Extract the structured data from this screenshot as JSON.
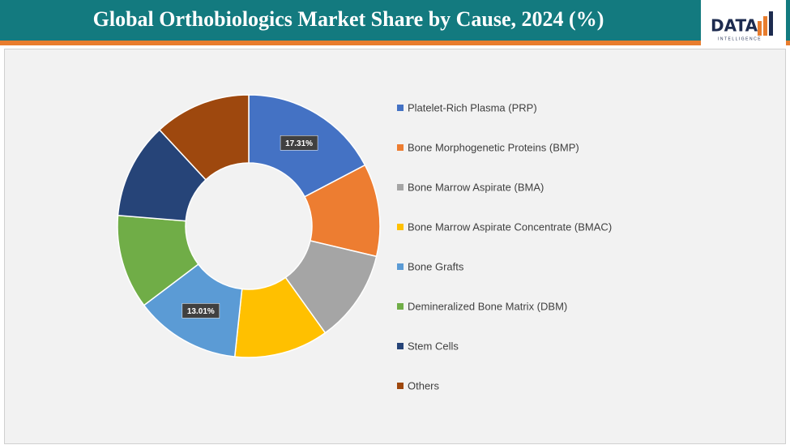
{
  "header": {
    "logo": "DATA",
    "logo_sub": "INTELLIGENCE"
  },
  "chart_data": {
    "type": "donut",
    "title": "Global Orthobiologics Market Share by Cause, 2024 (%)",
    "categories": [
      "Platelet-Rich Plasma (PRP)",
      "Bone Morphogenetic Proteins (BMP)",
      "Bone Marrow Aspirate (BMA)",
      "Bone Marrow Aspirate Concentrate (BMAC)",
      "Bone Grafts",
      "Demineralized Bone Matrix (DBM)",
      "Stem Cells",
      "Others"
    ],
    "values": [
      17.31,
      11.4,
      11.4,
      11.6,
      13.01,
      11.6,
      11.8,
      11.9
    ],
    "value_labels": [
      "17.31%",
      null,
      null,
      null,
      "13.01%",
      null,
      null,
      null
    ],
    "colors": [
      "#4472c4",
      "#ed7d31",
      "#a5a5a5",
      "#ffc000",
      "#5b9bd5",
      "#70ad47",
      "#264478",
      "#9e480e"
    ],
    "legend": "right"
  }
}
